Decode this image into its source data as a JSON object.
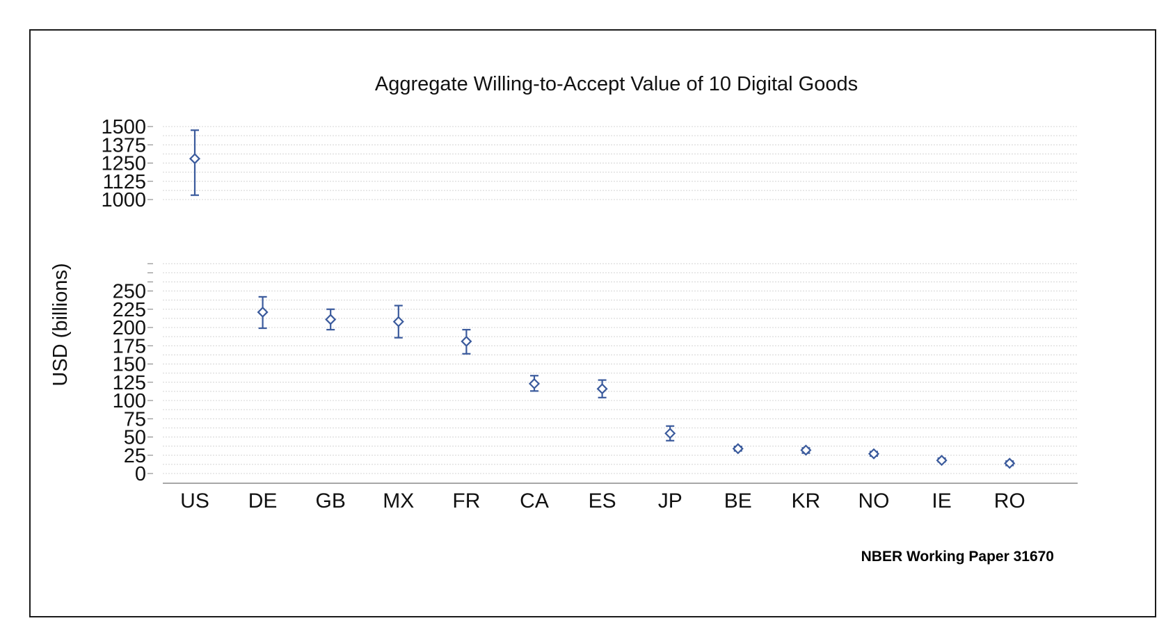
{
  "footer": {
    "source": "NBER Working Paper  31670"
  },
  "chart_data": {
    "type": "scatter",
    "title": "Aggregate Willing-to-Accept Value of 10 Digital Goods",
    "xlabel": "",
    "ylabel": "USD (billions)",
    "categories": [
      "US",
      "DE",
      "GB",
      "MX",
      "FR",
      "CA",
      "ES",
      "JP",
      "BE",
      "KR",
      "NO",
      "IE",
      "RO"
    ],
    "series": [
      {
        "values": [
          1280,
          221,
          211,
          208,
          181,
          123,
          116,
          55,
          34,
          32,
          27,
          18,
          14
        ],
        "lower": [
          1030,
          199,
          197,
          186,
          164,
          113,
          104,
          45,
          31,
          28,
          24,
          16,
          11
        ],
        "upper": [
          1475,
          242,
          225,
          230,
          197,
          134,
          128,
          65,
          37,
          35,
          30,
          21,
          17
        ]
      }
    ],
    "y_axis": {
      "broken": true,
      "segments": [
        {
          "range": [
            0,
            250
          ],
          "ticks": [
            0,
            25,
            50,
            75,
            100,
            125,
            150,
            175,
            200,
            225,
            250
          ]
        },
        {
          "range": [
            1000,
            1500
          ],
          "ticks": [
            1000,
            1125,
            1250,
            1375,
            1500
          ]
        }
      ]
    },
    "grid": true,
    "marker": "diamond",
    "error_bars": true,
    "colors": {
      "series": "#3a5a9c"
    }
  }
}
